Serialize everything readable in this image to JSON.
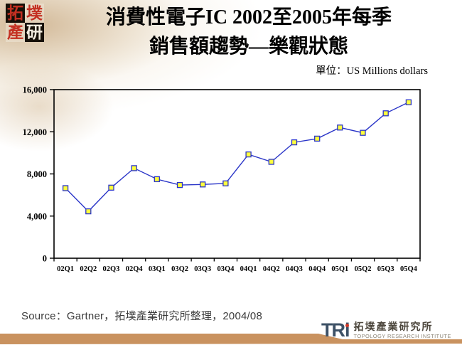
{
  "header": {
    "stamp_chars": [
      "拓",
      "墣",
      "產",
      "研"
    ],
    "title_line1": "消費性電子IC 2002至2005年每季",
    "title_line2": "銷售額趨勢—樂觀狀態",
    "unit_label": "單位：US Millions dollars"
  },
  "chart_data": {
    "type": "line",
    "title": "消費性電子IC 2002至2005年每季銷售額趨勢—樂觀狀態",
    "unit": "US Millions dollars",
    "categories": [
      "02Q1",
      "02Q2",
      "02Q3",
      "02Q4",
      "03Q1",
      "03Q2",
      "03Q3",
      "03Q4",
      "04Q1",
      "04Q2",
      "04Q3",
      "04Q4",
      "05Q1",
      "05Q2",
      "05Q3",
      "05Q4"
    ],
    "values": [
      6650,
      4450,
      6700,
      8550,
      7500,
      6950,
      7000,
      7100,
      9850,
      9150,
      11000,
      11350,
      12400,
      11900,
      13750,
      14800
    ],
    "ylim": [
      0,
      16000
    ],
    "y_ticks": [
      {
        "value": 0,
        "label": "0"
      },
      {
        "value": 4000,
        "label": "4,000"
      },
      {
        "value": 8000,
        "label": "8,000"
      },
      {
        "value": 12000,
        "label": "12,000"
      },
      {
        "value": 16000,
        "label": "16,000"
      }
    ],
    "grid": false,
    "legend": "none",
    "line_color": "#2a35c8",
    "marker_fill": "#ffff3d",
    "marker_stroke": "#2a35c8"
  },
  "footer": {
    "source": "Source：Gartner，拓墣產業研究所整理，2004/08",
    "tri": {
      "mark_tr": "TR",
      "mark_i": "i",
      "name_zh": "拓墣產業研究所",
      "name_en": "TOPOLOGY RESEARCH INSTITUTE"
    }
  },
  "colors": {
    "footer_bar": "#c9925f",
    "stamp_red": "#c43022",
    "tri_navy": "#3d5166",
    "tri_dot_red": "#d23726"
  }
}
